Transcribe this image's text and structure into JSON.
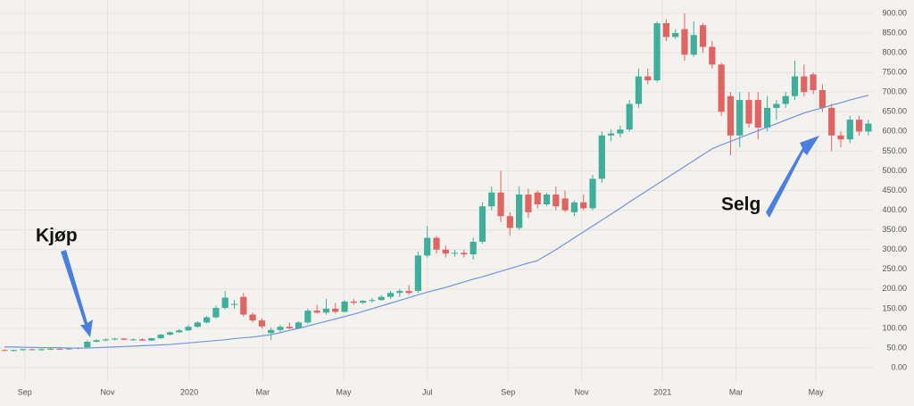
{
  "chart_data": {
    "type": "candlestick",
    "up_color": "#3fae9a",
    "down_color": "#e06462",
    "open": [
      45,
      43,
      45,
      47,
      45,
      47,
      48,
      47,
      49,
      52,
      66,
      70,
      72,
      74,
      71,
      72,
      69,
      75,
      84,
      90,
      95,
      104,
      115,
      128,
      152,
      160,
      180,
      135,
      120,
      88,
      96,
      104,
      100,
      115,
      145,
      140,
      150,
      142,
      168,
      165,
      170,
      172,
      180,
      190,
      195,
      195,
      285,
      330,
      300,
      290,
      292,
      288,
      320,
      410,
      445,
      385,
      355,
      440,
      445,
      415,
      440,
      430,
      395,
      420,
      405,
      480,
      590,
      595,
      605,
      670,
      740,
      730,
      875,
      840,
      860,
      795,
      870,
      815,
      770,
      690,
      590,
      680,
      680,
      610,
      660,
      670,
      690,
      740,
      745,
      705,
      660,
      590,
      580,
      630,
      600
    ],
    "high": [
      47,
      46,
      48,
      49,
      48,
      50,
      51,
      50,
      52,
      70,
      72,
      74,
      76,
      76,
      74,
      75,
      76,
      86,
      92,
      98,
      108,
      118,
      132,
      158,
      195,
      172,
      190,
      140,
      125,
      102,
      108,
      115,
      118,
      150,
      160,
      175,
      165,
      172,
      175,
      172,
      178,
      185,
      195,
      200,
      210,
      295,
      360,
      335,
      310,
      300,
      300,
      330,
      420,
      460,
      500,
      395,
      460,
      455,
      450,
      445,
      460,
      450,
      425,
      440,
      490,
      600,
      605,
      615,
      680,
      760,
      760,
      880,
      885,
      860,
      900,
      880,
      875,
      830,
      775,
      700,
      700,
      700,
      700,
      690,
      680,
      700,
      780,
      770,
      750,
      720,
      670,
      600,
      640,
      640,
      630
    ],
    "low": [
      42,
      41,
      43,
      44,
      43,
      45,
      46,
      45,
      47,
      51,
      64,
      67,
      69,
      70,
      68,
      68,
      68,
      73,
      82,
      88,
      93,
      102,
      112,
      125,
      148,
      150,
      130,
      115,
      100,
      70,
      90,
      98,
      98,
      112,
      138,
      135,
      138,
      140,
      160,
      162,
      165,
      170,
      175,
      180,
      185,
      190,
      280,
      290,
      280,
      282,
      280,
      275,
      315,
      400,
      370,
      335,
      350,
      380,
      405,
      410,
      400,
      395,
      385,
      400,
      400,
      470,
      575,
      585,
      600,
      660,
      720,
      725,
      830,
      835,
      780,
      790,
      800,
      760,
      640,
      540,
      560,
      610,
      580,
      600,
      630,
      660,
      680,
      690,
      695,
      650,
      550,
      560,
      570,
      590,
      590
    ],
    "close": [
      43,
      45,
      47,
      45,
      47,
      48,
      47,
      49,
      51,
      66,
      70,
      72,
      74,
      71,
      72,
      69,
      75,
      84,
      90,
      95,
      104,
      115,
      128,
      152,
      178,
      162,
      135,
      120,
      105,
      96,
      104,
      100,
      115,
      145,
      140,
      150,
      142,
      168,
      165,
      170,
      172,
      180,
      190,
      195,
      190,
      285,
      330,
      300,
      290,
      292,
      288,
      320,
      410,
      445,
      385,
      355,
      440,
      395,
      415,
      440,
      410,
      400,
      420,
      405,
      480,
      590,
      595,
      605,
      670,
      740,
      730,
      875,
      840,
      850,
      795,
      845,
      815,
      770,
      650,
      590,
      680,
      620,
      610,
      660,
      670,
      690,
      740,
      700,
      705,
      660,
      590,
      580,
      630,
      600,
      620
    ],
    "moving_average": {
      "color": "#6f95e0",
      "values": [
        53,
        53,
        52,
        52,
        51,
        51,
        51,
        50,
        50,
        50,
        51,
        52,
        53,
        54,
        55,
        56,
        57,
        58,
        59,
        61,
        63,
        65,
        67,
        69,
        71,
        74,
        76,
        78,
        81,
        84,
        89,
        95,
        100,
        106,
        112,
        118,
        124,
        130,
        136,
        143,
        150,
        157,
        164,
        171,
        178,
        185,
        192,
        198,
        204,
        211,
        218,
        225,
        231,
        238,
        245,
        252,
        259,
        266,
        272,
        286,
        300,
        315,
        330,
        345,
        360,
        375,
        390,
        405,
        421,
        436,
        451,
        466,
        481,
        496,
        511,
        526,
        541,
        556,
        566,
        575,
        584,
        593,
        602,
        611,
        620,
        629,
        638,
        647,
        654,
        660,
        667,
        673,
        680,
        686,
        692
      ]
    },
    "xlim": [
      -0.5,
      94.5
    ],
    "xticks": [
      {
        "value": 2.2,
        "label": "Sep"
      },
      {
        "value": 11.2,
        "label": "Nov"
      },
      {
        "value": 20.1,
        "label": "2020"
      },
      {
        "value": 28.1,
        "label": "Mar"
      },
      {
        "value": 36.9,
        "label": "May"
      },
      {
        "value": 46,
        "label": "Jul"
      },
      {
        "value": 54.8,
        "label": "Sep"
      },
      {
        "value": 62.8,
        "label": "Nov"
      },
      {
        "value": 71.6,
        "label": "2021"
      },
      {
        "value": 79.6,
        "label": "Mar"
      },
      {
        "value": 88.3,
        "label": "May"
      }
    ],
    "ylim": [
      -36,
      934
    ],
    "yticks": [
      {
        "value": 0,
        "label": "0.00"
      },
      {
        "value": 50,
        "label": "50.00"
      },
      {
        "value": 100,
        "label": "100.00"
      },
      {
        "value": 150,
        "label": "150.00"
      },
      {
        "value": 200,
        "label": "200.00"
      },
      {
        "value": 250,
        "label": "250.00"
      },
      {
        "value": 300,
        "label": "300.00"
      },
      {
        "value": 350,
        "label": "350.00"
      },
      {
        "value": 400,
        "label": "400.00"
      },
      {
        "value": 450,
        "label": "450.00"
      },
      {
        "value": 500,
        "label": "500.00"
      },
      {
        "value": 550,
        "label": "550.00"
      },
      {
        "value": 600,
        "label": "600.00"
      },
      {
        "value": 650,
        "label": "650.00"
      },
      {
        "value": 700,
        "label": "700.00"
      },
      {
        "value": 750,
        "label": "750.00"
      },
      {
        "value": 800,
        "label": "800.00"
      },
      {
        "value": 850,
        "label": "850.00"
      },
      {
        "value": 900,
        "label": "900.00"
      }
    ],
    "grid": true,
    "annotations": [
      "Kjøp",
      "Selg"
    ]
  }
}
